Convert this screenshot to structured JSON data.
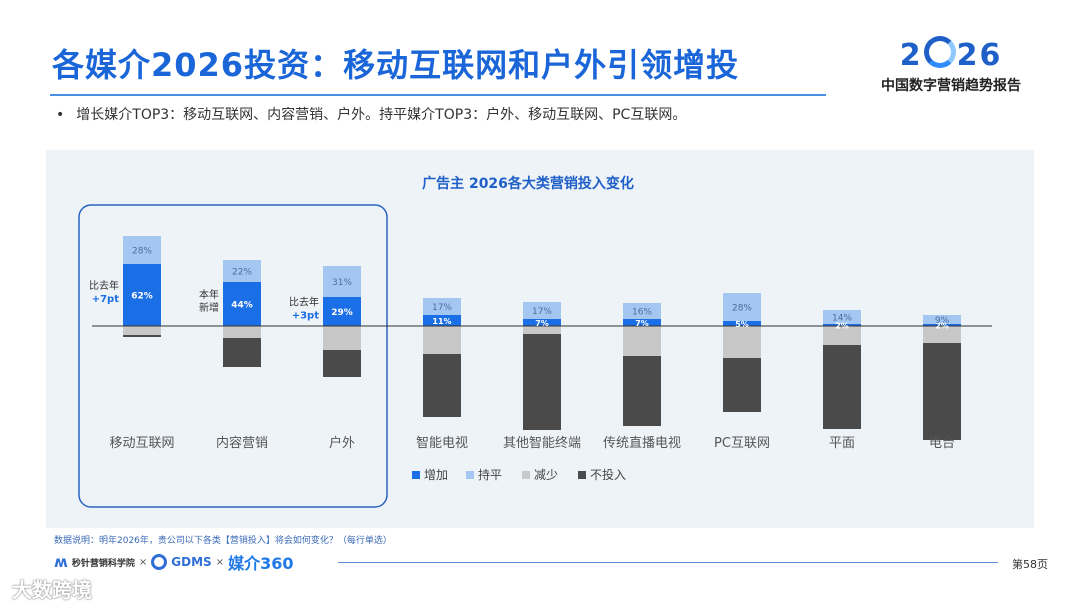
{
  "title": "各媒介2026投资：移动互联网和户外引领增投",
  "brand": {
    "year": "2026",
    "subtitle": "中国数字营销趋势报告"
  },
  "bullet": "增长媒介TOP3：移动互联网、内容营销、户外。持平媒介TOP3：户外、移动互联网、PC互联网。",
  "chart_data": {
    "type": "bar",
    "title": "广告主 2026各大类营销投入变化",
    "categories": [
      "移动互联网",
      "内容营销",
      "户外",
      "智能电视",
      "其他智能终端",
      "传统直播电视",
      "PC互联网",
      "平面",
      "电台"
    ],
    "series": [
      {
        "name": "增加",
        "values": [
          62,
          44,
          29,
          11,
          7,
          7,
          5,
          2,
          2
        ]
      },
      {
        "name": "持平",
        "values": [
          28,
          22,
          31,
          17,
          17,
          16,
          28,
          14,
          9
        ]
      },
      {
        "name": "减少",
        "values": [
          9,
          12,
          24,
          28,
          8,
          30,
          32,
          19,
          17
        ]
      },
      {
        "name": "不投入",
        "values": [
          2,
          29,
          27,
          63,
          96,
          70,
          54,
          84,
          97
        ]
      }
    ],
    "data_labels": {
      "增加": [
        "62%",
        "44%",
        "29%",
        "11%",
        "7%",
        "7%",
        "5%",
        "2%",
        "2%"
      ],
      "持平": [
        "28%",
        "22%",
        "31%",
        "17%",
        "17%",
        "16%",
        "28%",
        "14%",
        "9%"
      ]
    },
    "colors": {
      "增加": "#1a6ee6",
      "持平": "#a4c7f2",
      "减少": "#c8c8c8",
      "不投入": "#4a4a4a"
    },
    "legend_position": "bottom",
    "annotations": [
      {
        "category": "移动互联网",
        "text": [
          "比去年",
          "+7pt"
        ]
      },
      {
        "category": "内容营销",
        "text": [
          "本年",
          "新增"
        ]
      },
      {
        "category": "户外",
        "text": [
          "比去年",
          "+3pt"
        ]
      }
    ],
    "highlight_categories": [
      "移动互联网",
      "内容营销",
      "户外"
    ]
  },
  "note": "数据说明：明年2026年，贵公司以下各类【营销投入】将会如何变化？（每行单选）",
  "footer": {
    "logos": [
      "秒针营销科学院",
      "GDMS",
      "媒介360"
    ],
    "separator": "×",
    "page": "第58页"
  },
  "watermark": "大数跨境"
}
